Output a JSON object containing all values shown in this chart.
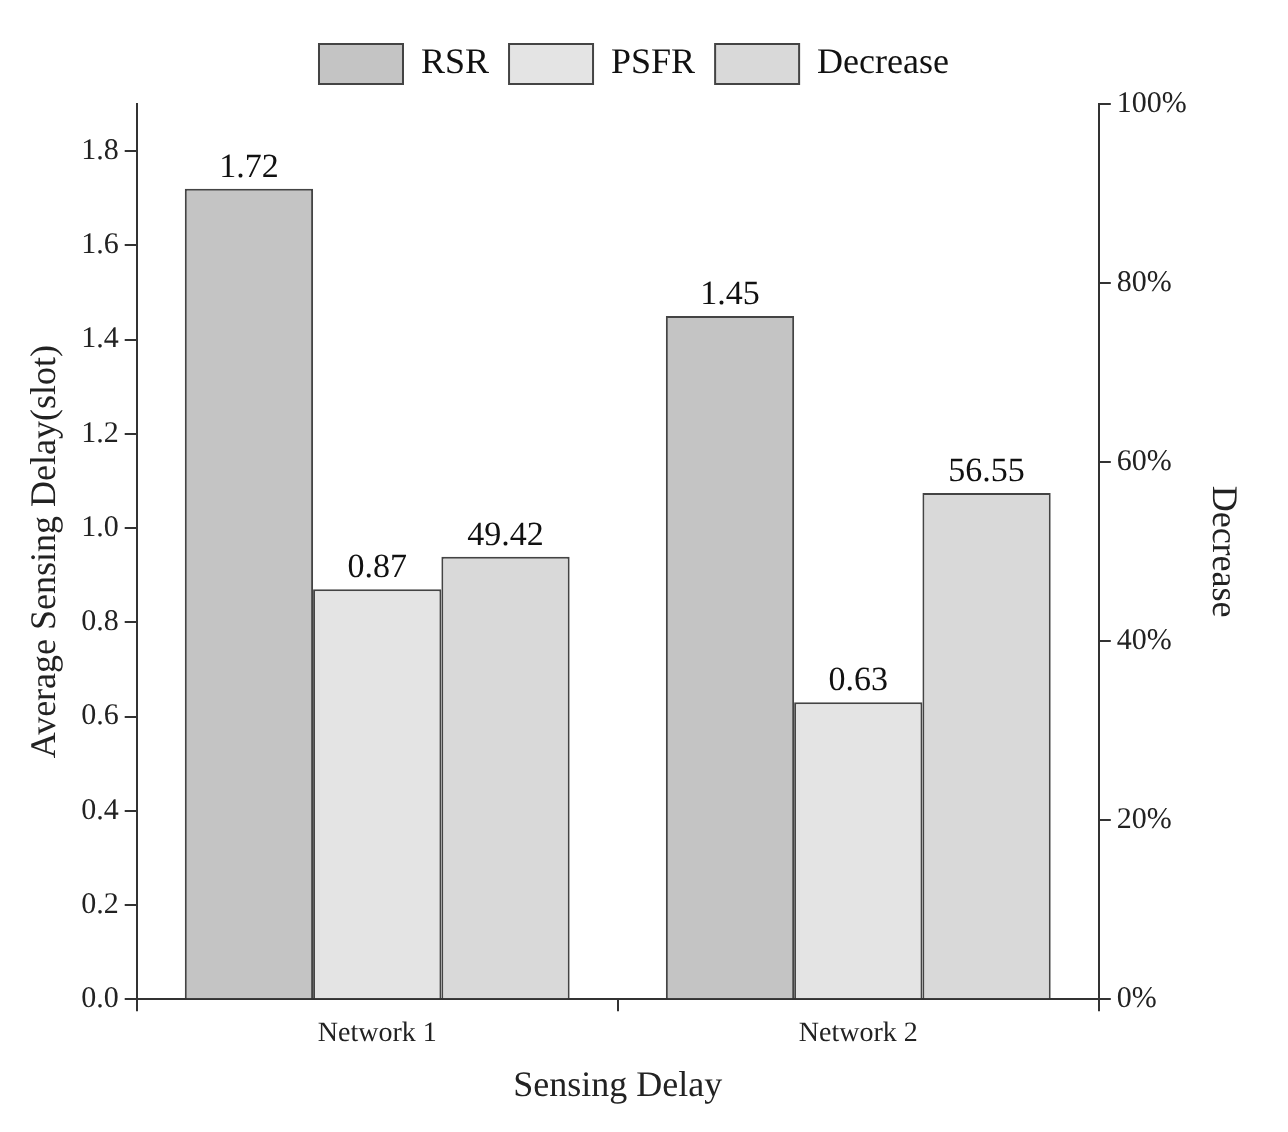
{
  "chart_data": {
    "type": "bar",
    "xlabel": "Sensing Delay",
    "ylabel": "Average Sensing Delay(slot)",
    "y2label": "Decrease",
    "categories": [
      "Network 1",
      "Network 2"
    ],
    "series": [
      {
        "name": "RSR",
        "color": "#c4c4c4",
        "values": [
          1.72,
          1.45
        ]
      },
      {
        "name": "PSFR",
        "color": "#e4e4e4",
        "values": [
          0.87,
          0.63
        ]
      },
      {
        "name": "Decrease",
        "color": "#d9d9d9",
        "values": [
          49.42,
          56.55
        ],
        "axis": "y2"
      }
    ],
    "ylim": [
      0,
      1.9
    ],
    "yticks": [
      {
        "value": 0,
        "label": "0.0"
      },
      {
        "value": 0.2,
        "label": "0.2"
      },
      {
        "value": 0.4,
        "label": "0.4"
      },
      {
        "value": 0.6,
        "label": "0.6"
      },
      {
        "value": 0.8,
        "label": "0.8"
      },
      {
        "value": 1,
        "label": "1.0"
      },
      {
        "value": 1.2,
        "label": "1.2"
      },
      {
        "value": 1.4,
        "label": "1.4"
      },
      {
        "value": 1.6,
        "label": "1.6"
      },
      {
        "value": 1.8,
        "label": "1.8"
      }
    ],
    "y2lim": [
      0,
      100
    ],
    "y2ticks": [
      {
        "value": 0,
        "label": "0%"
      },
      {
        "value": 20,
        "label": "20%"
      },
      {
        "value": 40,
        "label": "40%"
      },
      {
        "value": 60,
        "label": "60%"
      },
      {
        "value": 80,
        "label": "80%"
      },
      {
        "value": 100,
        "label": "100%"
      }
    ],
    "data_labels": true,
    "legend": "top",
    "grid": false
  }
}
